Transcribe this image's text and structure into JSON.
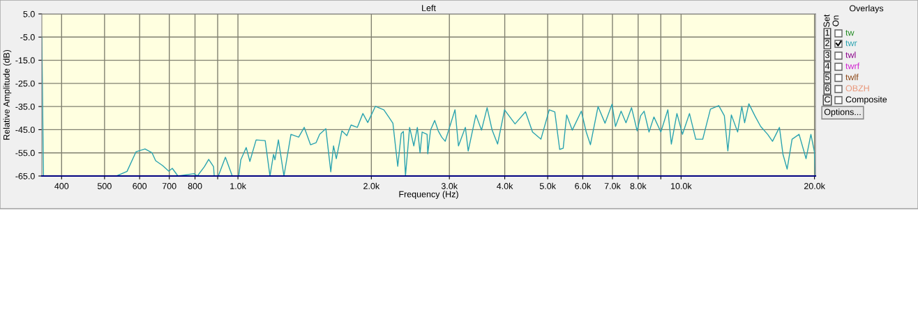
{
  "chart_data": {
    "type": "line",
    "title": "Left",
    "xlabel": "Frequency (Hz)",
    "ylabel": "Relative Amplitude (dB)",
    "x": [
      361,
      364,
      532,
      562,
      589,
      617,
      640,
      652,
      676,
      698,
      711,
      732,
      796,
      810,
      840,
      859,
      881,
      884,
      903,
      937,
      971,
      1000,
      1004,
      1015,
      1044,
      1064,
      1099,
      1152,
      1181,
      1203,
      1212,
      1234,
      1270,
      1317,
      1371,
      1411,
      1458,
      1501,
      1529,
      1579,
      1620,
      1643,
      1667,
      1716,
      1761,
      1800,
      1860,
      1914,
      1963,
      2043,
      2134,
      2189,
      2237,
      2294,
      2336,
      2362,
      2388,
      2440,
      2494,
      2540,
      2576,
      2604,
      2672,
      2681,
      2720,
      2780,
      2831,
      2883,
      2936,
      3089,
      3145,
      3260,
      3308,
      3443,
      3545,
      3650,
      3744,
      3854,
      3996,
      4220,
      4456,
      4621,
      4827,
      5041,
      5188,
      5321,
      5419,
      5518,
      5680,
      5955,
      6108,
      6243,
      6496,
      6736,
      6985,
      7112,
      7322,
      7510,
      7731,
      7958,
      8104,
      8252,
      8465,
      8683,
      9001,
      9335,
      9506,
      9786,
      10072,
      10445,
      10792,
      11190,
      11646,
      12162,
      12520,
      12750,
      12984,
      13416,
      13710,
      13911,
      14220,
      14690,
      15120,
      15680,
      16080,
      16670,
      16980,
      17350,
      17800,
      18460,
      19140,
      19630,
      19990,
      20080
    ],
    "series": [
      {
        "name": "twr",
        "color": "#2aa3b0",
        "values": [
          -5,
          -65,
          -65,
          -63,
          -54.5,
          -53.3,
          -55,
          -58.4,
          -60.5,
          -62.9,
          -61.7,
          -65,
          -64,
          -65,
          -61,
          -57.8,
          -61,
          -65,
          -65,
          -56.9,
          -65,
          -65,
          -65,
          -58,
          -52.7,
          -58.7,
          -49.4,
          -49.7,
          -65,
          -55.7,
          -58,
          -49.4,
          -65,
          -47,
          -48.2,
          -44,
          -51.5,
          -50.6,
          -47,
          -44.6,
          -63.2,
          -52,
          -57.5,
          -45.5,
          -47.6,
          -43,
          -44,
          -38,
          -41.9,
          -34.9,
          -36.4,
          -39.5,
          -42.2,
          -60.8,
          -46.7,
          -45.8,
          -65,
          -44,
          -52,
          -44,
          -55,
          -46,
          -47,
          -55.4,
          -45.2,
          -41,
          -45.5,
          -48.2,
          -50,
          -36.4,
          -52,
          -44,
          -54.2,
          -38.6,
          -45.2,
          -35.5,
          -45,
          -51.2,
          -36.4,
          -42.5,
          -37.3,
          -46,
          -49.1,
          -36.4,
          -37.3,
          -53.5,
          -53,
          -38.6,
          -45.2,
          -37,
          -46,
          -51.5,
          -35,
          -42.2,
          -34,
          -43.6,
          -37,
          -42,
          -35.5,
          -45.5,
          -39,
          -37,
          -46,
          -39.5,
          -46,
          -36.4,
          -51.2,
          -38,
          -47,
          -38,
          -49.1,
          -49.1,
          -36.1,
          -34.6,
          -39,
          -54.2,
          -38.6,
          -46,
          -35,
          -42,
          -33.8,
          -39.2,
          -43.6,
          -47,
          -50,
          -44,
          -55.7,
          -62,
          -49.1,
          -47,
          -57.5,
          -47,
          -54.5,
          -65
        ]
      }
    ],
    "log": "x",
    "xlim": [
      361,
      20100
    ],
    "xticks": [
      400,
      500,
      600,
      700,
      800,
      {
        "value": 900,
        "label": null
      },
      {
        "value": 1000,
        "label": "1.0k"
      },
      {
        "value": 2000,
        "label": "2.0k"
      },
      {
        "value": 3000,
        "label": "3.0k"
      },
      {
        "value": 4000,
        "label": "4.0k"
      },
      {
        "value": 5000,
        "label": "5.0k"
      },
      {
        "value": 6000,
        "label": "6.0k"
      },
      {
        "value": 7000,
        "label": "7.0k"
      },
      {
        "value": 8000,
        "label": "8.0k"
      },
      {
        "value": 9000,
        "label": null
      },
      {
        "value": 10000,
        "label": "10.0k"
      },
      {
        "value": 20000,
        "label": "20.0k"
      }
    ],
    "ylim": [
      -65,
      5
    ],
    "yticks": [
      {
        "value": 5,
        "label": "5.0"
      },
      {
        "value": -5,
        "label": "-5.0"
      },
      {
        "value": -15,
        "label": "-15.0"
      },
      {
        "value": -25,
        "label": "-25.0"
      },
      {
        "value": -35,
        "label": "-35.0"
      },
      {
        "value": -45,
        "label": "-45.0"
      },
      {
        "value": -55,
        "label": "-55.0"
      },
      {
        "value": -65,
        "label": "-65.0"
      }
    ],
    "grid": true,
    "marker": "none",
    "line_style": "solid",
    "annotations": [
      "Overlays",
      "Set",
      "On",
      "1",
      "tw",
      "2",
      "3",
      "twl",
      "4",
      "twrf",
      "5",
      "twlf",
      "6",
      "OBZH",
      "C",
      "Composite",
      "Options..."
    ]
  }
}
